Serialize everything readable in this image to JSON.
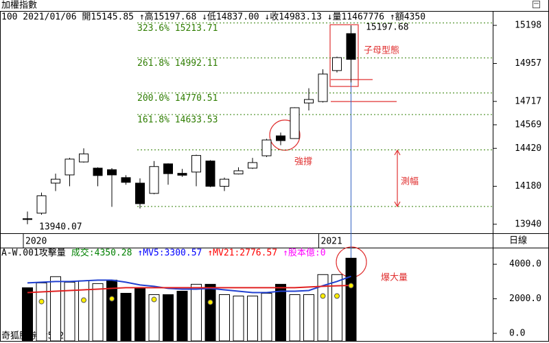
{
  "chart_data": [
    {
      "type": "candlestick",
      "title": "加權指數",
      "subtitle": "100 2021/01/06 開15145.85 ↑高15197.68 ↓低14837.00 ↓收14983.13 ↓量11467776 ↑額4350",
      "period": "日線",
      "categories": [
        "2020",
        null,
        null,
        null,
        null,
        null,
        null,
        null,
        null,
        null,
        null,
        null,
        null,
        null,
        null,
        null,
        null,
        null,
        null,
        null,
        null,
        "2021",
        null,
        null
      ],
      "open": [
        13975,
        14010,
        14200,
        14252,
        14334,
        14295,
        14285,
        14235,
        14200,
        14135,
        14322,
        14262,
        14270,
        14340,
        14180,
        14258,
        14295,
        14373,
        14499,
        14482,
        14707,
        14716,
        14912,
        15145.85
      ],
      "high": [
        14020,
        14140,
        14260,
        14360,
        14420,
        14300,
        14295,
        14250,
        14230,
        14340,
        14325,
        14290,
        14380,
        14345,
        14235,
        14300,
        14360,
        14480,
        14520,
        14680,
        14800,
        14920,
        15000,
        15197.68
      ],
      "low": [
        13940,
        14000,
        14150,
        14180,
        14330,
        14180,
        14050,
        14190,
        14040,
        14130,
        14190,
        14240,
        14180,
        14175,
        14150,
        14255,
        14290,
        14365,
        14440,
        14480,
        14660,
        14710,
        14900,
        14837
      ],
      "close": [
        13970,
        14120,
        14225,
        14352,
        14385,
        14248,
        14252,
        14205,
        14070,
        14305,
        14260,
        14250,
        14375,
        14180,
        14225,
        14278,
        14330,
        14473,
        14469,
        14677,
        14729,
        14890,
        14994,
        14983.13
      ],
      "ylim": [
        13883,
        15289
      ],
      "yticks": [
        13940,
        14180,
        14420,
        14569,
        14717,
        14957,
        15198
      ],
      "fib_levels": [
        {
          "value": 15213.71,
          "label": "323.6% 15213.71"
        },
        {
          "value": 14992.11,
          "label": "261.8% 14992.11"
        },
        {
          "value": 14770.51,
          "label": "200.0% 14770.51"
        },
        {
          "value": 14633.53,
          "label": "161.8% 14633.53"
        }
      ],
      "extra_levels": [
        14410,
        14052
      ],
      "fib_color": "#2e7d00",
      "annotations": [
        {
          "text": "15197.68",
          "color": "#000000"
        },
        {
          "text": "13940.07",
          "color": "#000000"
        },
        {
          "text": "子母型態",
          "color": "#e03030"
        },
        {
          "text": "強撐",
          "color": "#e03030"
        },
        {
          "text": "測幅",
          "color": "#e03030"
        }
      ]
    },
    {
      "type": "volume",
      "title": "A-W.001攻擊量",
      "indicators": [
        {
          "text": "成交:4350.28",
          "color": "#008000"
        },
        {
          "text": "↑MV5:3300.57",
          "color": "#0000ff"
        },
        {
          "text": "↑MV21:2776.57",
          "color": "#ff0000"
        },
        {
          "text": "↑股本億:0",
          "color": "#ff00ff"
        }
      ],
      "footer": "奇狐勝券 v5.2",
      "annotation": {
        "text": "爆大量",
        "color": "#e03030"
      },
      "values": [
        2640,
        2920,
        3280,
        2960,
        3040,
        2880,
        3080,
        2320,
        2640,
        2240,
        2240,
        2440,
        2840,
        2840,
        2240,
        2160,
        2160,
        2320,
        2840,
        2240,
        2240,
        3400,
        3400,
        4350.28
      ],
      "colors": [
        "#000",
        "#fff",
        "#fff",
        "#fff",
        "#fff",
        "#fff",
        "#000",
        "#000",
        "#000",
        "#fff",
        "#000",
        "#000",
        "#fff",
        "#000",
        "#fff",
        "#fff",
        "#fff",
        "#fff",
        "#000",
        "#fff",
        "#fff",
        "#fff",
        "#fff",
        "#000"
      ],
      "series": [
        {
          "color": "#1f3fd0",
          "values": [
            2920,
            2960,
            3000,
            3000,
            3040,
            3080,
            3080,
            2960,
            2800,
            2720,
            2600,
            2560,
            2560,
            2600,
            2520,
            2440,
            2360,
            2360,
            2440,
            2440,
            2480,
            2760,
            3000,
            3300.57
          ]
        },
        {
          "color": "#e02020",
          "values": [
            2360,
            2400,
            2440,
            2480,
            2520,
            2560,
            2600,
            2640,
            2640,
            2640,
            2640,
            2640,
            2640,
            2640,
            2640,
            2640,
            2640,
            2640,
            2640,
            2640,
            2680,
            2720,
            2750,
            2776.57
          ]
        }
      ],
      "dots": {
        "color": "#ffee00",
        "values": [
          null,
          1840,
          null,
          null,
          1920,
          null,
          2000,
          null,
          null,
          1960,
          null,
          null,
          null,
          1800,
          null,
          null,
          null,
          null,
          null,
          null,
          null,
          2160,
          2160,
          2760
        ]
      },
      "ylim": [
        -400,
        4880
      ],
      "yticks": [
        {
          "value": 0,
          "label": "0.0"
        },
        {
          "value": 2000,
          "label": "2000.0"
        },
        {
          "value": 4000,
          "label": "4000.0"
        }
      ]
    }
  ]
}
